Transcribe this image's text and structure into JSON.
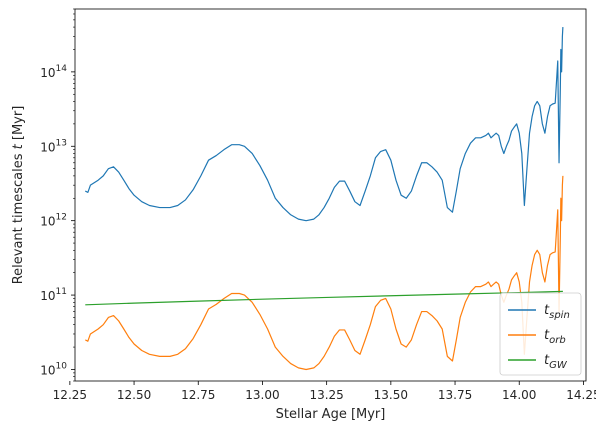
{
  "chart_data": {
    "type": "line",
    "xlabel": "Stellar Age [Myr]",
    "ylabel": "Relevant timescales t [Myr]",
    "xlim": [
      12.27,
      14.26
    ],
    "ylim": [
      7000000000.0,
      700000000000000.0
    ],
    "yscale": "log",
    "grid": false,
    "legend_position": "lower-right",
    "x_ticks": [
      12.25,
      12.5,
      12.75,
      13.0,
      13.25,
      13.5,
      13.75,
      14.0,
      14.25
    ],
    "x_tick_labels": [
      "12.25",
      "12.50",
      "12.75",
      "13.00",
      "13.25",
      "13.50",
      "13.75",
      "14.00",
      "14.25"
    ],
    "y_ticks": [
      10000000000.0,
      100000000000.0,
      1000000000000.0,
      10000000000000.0,
      100000000000000.0
    ],
    "y_tick_labels": [
      {
        "base": "10",
        "exp": "10"
      },
      {
        "base": "10",
        "exp": "11"
      },
      {
        "base": "10",
        "exp": "12"
      },
      {
        "base": "10",
        "exp": "13"
      },
      {
        "base": "10",
        "exp": "14"
      }
    ],
    "series": [
      {
        "name": {
          "main": "t",
          "sub": "spin"
        },
        "color": "#1f77b4",
        "x": [
          12.31,
          12.32,
          12.33,
          12.36,
          12.38,
          12.4,
          12.42,
          12.44,
          12.46,
          12.48,
          12.5,
          12.53,
          12.56,
          12.6,
          12.64,
          12.67,
          12.7,
          12.73,
          12.76,
          12.79,
          12.82,
          12.85,
          12.88,
          12.91,
          12.93,
          12.96,
          12.99,
          13.02,
          13.05,
          13.08,
          13.11,
          13.14,
          13.17,
          13.2,
          13.22,
          13.24,
          13.26,
          13.28,
          13.3,
          13.32,
          13.34,
          13.36,
          13.38,
          13.4,
          13.42,
          13.44,
          13.46,
          13.48,
          13.5,
          13.52,
          13.54,
          13.56,
          13.58,
          13.6,
          13.62,
          13.64,
          13.66,
          13.68,
          13.7,
          13.72,
          13.74,
          13.755,
          13.77,
          13.79,
          13.81,
          13.83,
          13.85,
          13.87,
          13.88,
          13.89,
          13.9,
          13.91,
          13.92,
          13.93,
          13.94,
          13.95,
          13.96,
          13.97,
          13.98,
          13.99,
          14.0,
          14.01,
          14.02,
          14.03,
          14.04,
          14.05,
          14.06,
          14.07,
          14.08,
          14.09,
          14.1,
          14.11,
          14.12,
          14.13,
          14.14,
          14.15,
          14.155,
          14.16,
          14.162,
          14.165,
          14.168,
          14.17
        ],
        "y": [
          2500000000000.0,
          2400000000000.0,
          3000000000000.0,
          3500000000000.0,
          4000000000000.0,
          5000000000000.0,
          5300000000000.0,
          4500000000000.0,
          3500000000000.0,
          2700000000000.0,
          2200000000000.0,
          1800000000000.0,
          1600000000000.0,
          1500000000000.0,
          1500000000000.0,
          1600000000000.0,
          1900000000000.0,
          2600000000000.0,
          4000000000000.0,
          6500000000000.0,
          7500000000000.0,
          9000000000000.0,
          10500000000000.0,
          10500000000000.0,
          10000000000000.0,
          8000000000000.0,
          5500000000000.0,
          3500000000000.0,
          2000000000000.0,
          1500000000000.0,
          1200000000000.0,
          1050000000000.0,
          1000000000000.0,
          1050000000000.0,
          1200000000000.0,
          1500000000000.0,
          2000000000000.0,
          2800000000000.0,
          3400000000000.0,
          3400000000000.0,
          2500000000000.0,
          1800000000000.0,
          1600000000000.0,
          2500000000000.0,
          4000000000000.0,
          7000000000000.0,
          8500000000000.0,
          9000000000000.0,
          6500000000000.0,
          3500000000000.0,
          2200000000000.0,
          2000000000000.0,
          2500000000000.0,
          4000000000000.0,
          6000000000000.0,
          6000000000000.0,
          5300000000000.0,
          4500000000000.0,
          3500000000000.0,
          1500000000000.0,
          1300000000000.0,
          2500000000000.0,
          5000000000000.0,
          8000000000000.0,
          11000000000000.0,
          13000000000000.0,
          13000000000000.0,
          14000000000000.0,
          15000000000000.0,
          13000000000000.0,
          14000000000000.0,
          15000000000000.0,
          14000000000000.0,
          10000000000000.0,
          8000000000000.0,
          10000000000000.0,
          12000000000000.0,
          16000000000000.0,
          18000000000000.0,
          20000000000000.0,
          15000000000000.0,
          8000000000000.0,
          1600000000000.0,
          5000000000000.0,
          15000000000000.0,
          25000000000000.0,
          35000000000000.0,
          40000000000000.0,
          35000000000000.0,
          20000000000000.0,
          15000000000000.0,
          25000000000000.0,
          35000000000000.0,
          37000000000000.0,
          38000000000000.0,
          140000000000000.0,
          6000000000000.0,
          60000000000000.0,
          200000000000000.0,
          100000000000000.0,
          300000000000000.0,
          400000000000000.0
        ]
      },
      {
        "name": {
          "main": "t",
          "sub": "orb"
        },
        "color": "#ff7f0e",
        "x": [
          12.31,
          12.32,
          12.33,
          12.36,
          12.38,
          12.4,
          12.42,
          12.44,
          12.46,
          12.48,
          12.5,
          12.53,
          12.56,
          12.6,
          12.64,
          12.67,
          12.7,
          12.73,
          12.76,
          12.79,
          12.82,
          12.85,
          12.88,
          12.91,
          12.93,
          12.96,
          12.99,
          13.02,
          13.05,
          13.08,
          13.11,
          13.14,
          13.17,
          13.2,
          13.22,
          13.24,
          13.26,
          13.28,
          13.3,
          13.32,
          13.34,
          13.36,
          13.38,
          13.4,
          13.42,
          13.44,
          13.46,
          13.48,
          13.5,
          13.52,
          13.54,
          13.56,
          13.58,
          13.6,
          13.62,
          13.64,
          13.66,
          13.68,
          13.7,
          13.72,
          13.74,
          13.755,
          13.77,
          13.79,
          13.81,
          13.83,
          13.85,
          13.87,
          13.88,
          13.89,
          13.9,
          13.91,
          13.92,
          13.93,
          13.94,
          13.95,
          13.96,
          13.97,
          13.98,
          13.99,
          14.0,
          14.01,
          14.02,
          14.03,
          14.04,
          14.05,
          14.06,
          14.07,
          14.08,
          14.09,
          14.1,
          14.11,
          14.12,
          14.13,
          14.14,
          14.15,
          14.155,
          14.16,
          14.162,
          14.165,
          14.168,
          14.17
        ],
        "y": [
          25000000000.0,
          24000000000.0,
          30000000000.0,
          35000000000.0,
          40000000000.0,
          50000000000.0,
          53000000000.0,
          45000000000.0,
          35000000000.0,
          27000000000.0,
          22000000000.0,
          18000000000.0,
          16000000000.0,
          15000000000.0,
          15000000000.0,
          16000000000.0,
          19000000000.0,
          26000000000.0,
          40000000000.0,
          65000000000.0,
          75000000000.0,
          90000000000.0,
          105000000000.0,
          105000000000.0,
          100000000000.0,
          80000000000.0,
          55000000000.0,
          35000000000.0,
          20000000000.0,
          15000000000.0,
          12000000000.0,
          10500000000.0,
          10000000000.0,
          10500000000.0,
          12000000000.0,
          15000000000.0,
          20000000000.0,
          28000000000.0,
          34000000000.0,
          34000000000.0,
          25000000000.0,
          18000000000.0,
          16000000000.0,
          25000000000.0,
          40000000000.0,
          70000000000.0,
          85000000000.0,
          90000000000.0,
          65000000000.0,
          35000000000.0,
          22000000000.0,
          20000000000.0,
          25000000000.0,
          40000000000.0,
          60000000000.0,
          60000000000.0,
          53000000000.0,
          45000000000.0,
          35000000000.0,
          15000000000.0,
          13000000000.0,
          25000000000.0,
          50000000000.0,
          80000000000.0,
          110000000000.0,
          130000000000.0,
          130000000000.0,
          140000000000.0,
          150000000000.0,
          130000000000.0,
          140000000000.0,
          150000000000.0,
          140000000000.0,
          100000000000.0,
          80000000000.0,
          100000000000.0,
          120000000000.0,
          160000000000.0,
          180000000000.0,
          200000000000.0,
          150000000000.0,
          80000000000.0,
          16000000000.0,
          50000000000.0,
          150000000000.0,
          250000000000.0,
          350000000000.0,
          400000000000.0,
          350000000000.0,
          200000000000.0,
          150000000000.0,
          250000000000.0,
          350000000000.0,
          370000000000.0,
          380000000000.0,
          1400000000000.0,
          60000000000.0,
          600000000000.0,
          2000000000000.0,
          1000000000000.0,
          3000000000000.0,
          4000000000000.0
        ]
      },
      {
        "name": {
          "main": "t",
          "sub": "GW"
        },
        "color": "#2ca02c",
        "x": [
          12.31,
          12.5,
          12.75,
          13.0,
          13.25,
          13.5,
          13.75,
          14.0,
          14.17
        ],
        "y": [
          74000000000.0,
          78000000000.0,
          83000000000.0,
          88000000000.0,
          93000000000.0,
          98000000000.0,
          103000000000.0,
          108000000000.0,
          112000000000.0
        ]
      }
    ]
  }
}
